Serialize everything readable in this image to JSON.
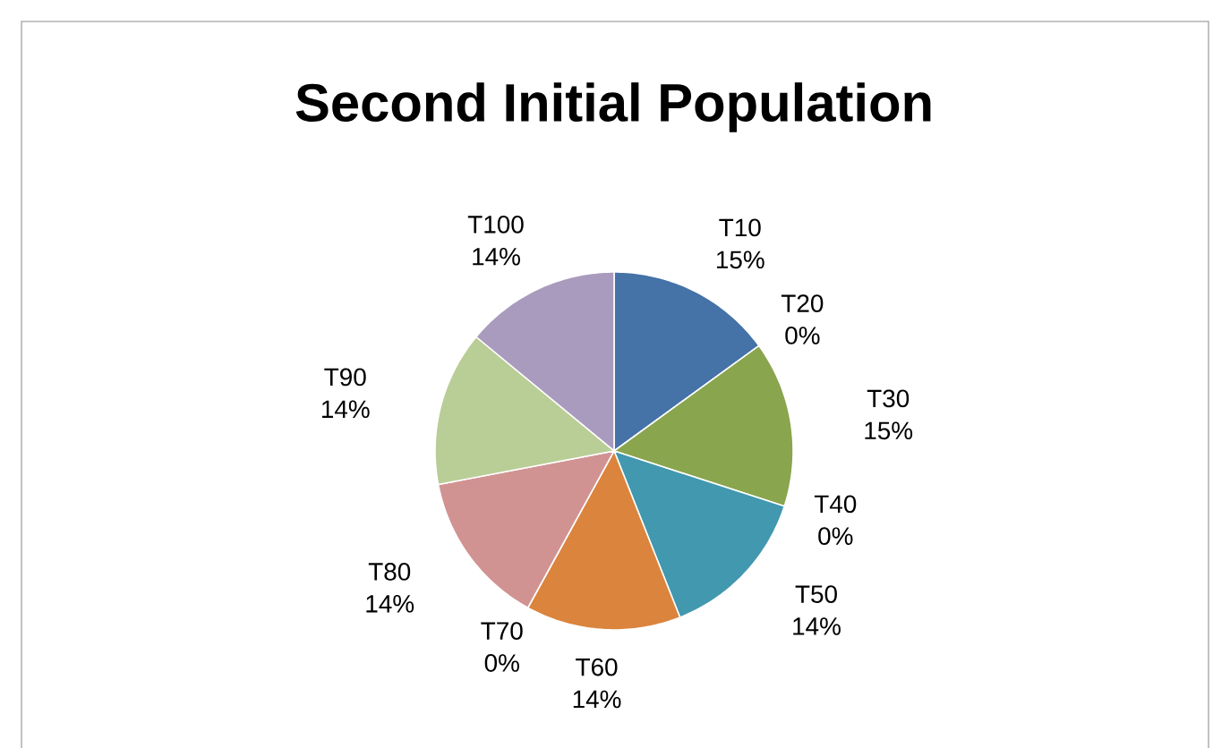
{
  "chart_data": {
    "type": "pie",
    "title": "Second Initial Population",
    "categories": [
      "T10",
      "T20",
      "T30",
      "T40",
      "T50",
      "T60",
      "T70",
      "T80",
      "T90",
      "T100"
    ],
    "values": [
      15,
      0,
      15,
      0,
      14,
      14,
      0,
      14,
      14,
      14
    ],
    "value_labels": [
      "15%",
      "0%",
      "15%",
      "0%",
      "14%",
      "14%",
      "0%",
      "14%",
      "14%",
      "14%"
    ],
    "colors": [
      "#4572a7",
      "#aa4643",
      "#89a54e",
      "#71588f",
      "#4198af",
      "#db843d",
      "#93a9cf",
      "#d19392",
      "#b9cd96",
      "#a99bbd"
    ]
  }
}
